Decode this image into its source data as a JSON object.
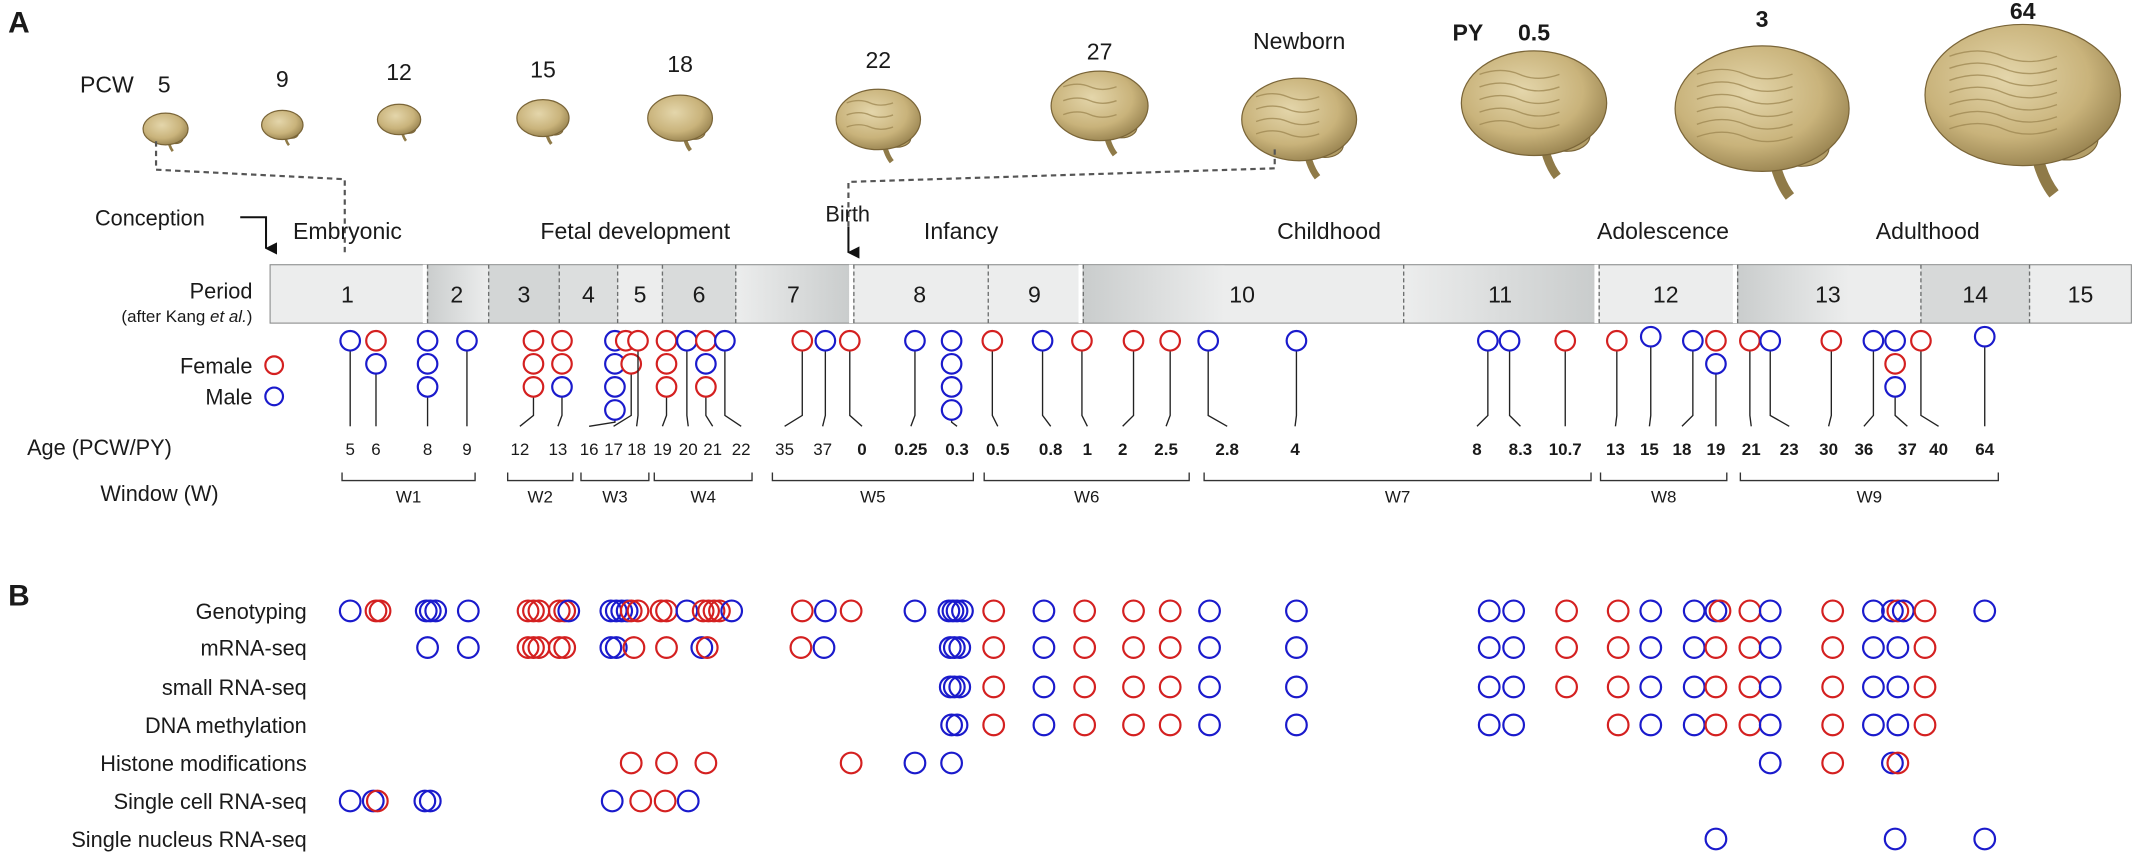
{
  "panel_a_label": "A",
  "panel_b_label": "B",
  "pcw_label": "PCW",
  "py_label": "PY",
  "brain_stages": [
    {
      "label": "5",
      "size": 0.16
    },
    {
      "label": "9",
      "size": 0.14
    },
    {
      "label": "12",
      "size": 0.15
    },
    {
      "label": "15",
      "size": 0.2
    },
    {
      "label": "18",
      "size": 0.27
    },
    {
      "label": "22",
      "size": 0.38
    },
    {
      "label": "27",
      "size": 0.45
    },
    {
      "label": "Newborn",
      "size": 0.55
    },
    {
      "label": "0.5",
      "size": 0.72
    },
    {
      "label": "3",
      "size": 0.88
    },
    {
      "label": "64",
      "size": 1.0
    }
  ],
  "events": {
    "conception": "Conception",
    "birth": "Birth"
  },
  "stage_names": [
    "Embryonic",
    "Fetal development",
    "Infancy",
    "Childhood",
    "Adolescence",
    "Adulthood"
  ],
  "period_label": "Period",
  "period_sublabel_pre": "(after Kang ",
  "period_sublabel_em": "et al.",
  "period_sublabel_post": ")",
  "periods": [
    "1",
    "2",
    "3",
    "4",
    "5",
    "6",
    "7",
    "8",
    "9",
    "10",
    "11",
    "12",
    "13",
    "14",
    "15"
  ],
  "legend": {
    "female": "Female",
    "male": "Male",
    "female_color": "#d42020",
    "male_color": "#1a1acc"
  },
  "age_label": "Age (PCW/PY)",
  "window_label": "Window (W)",
  "ages": [
    "5",
    "6",
    "8",
    "9",
    "12",
    "13",
    "16",
    "17",
    "18",
    "19",
    "20",
    "21",
    "22",
    "35",
    "37",
    "0",
    "0.25",
    "0.3",
    "0.5",
    "0.8",
    "1",
    "2",
    "2.5",
    "2.8",
    "4",
    "8",
    "8.3",
    "10.7",
    "13",
    "15",
    "18",
    "19",
    "21",
    "23",
    "30",
    "36",
    "37",
    "40",
    "64"
  ],
  "windows": [
    "W1",
    "W2",
    "W3",
    "W4",
    "W5",
    "W6",
    "W7",
    "W8",
    "W9"
  ],
  "datasets": [
    "Genotyping",
    "mRNA-seq",
    "small RNA-seq",
    "DNA methylation",
    "Histone modifications",
    "Single cell RNA-seq",
    "Single nucleus RNA-seq"
  ]
}
